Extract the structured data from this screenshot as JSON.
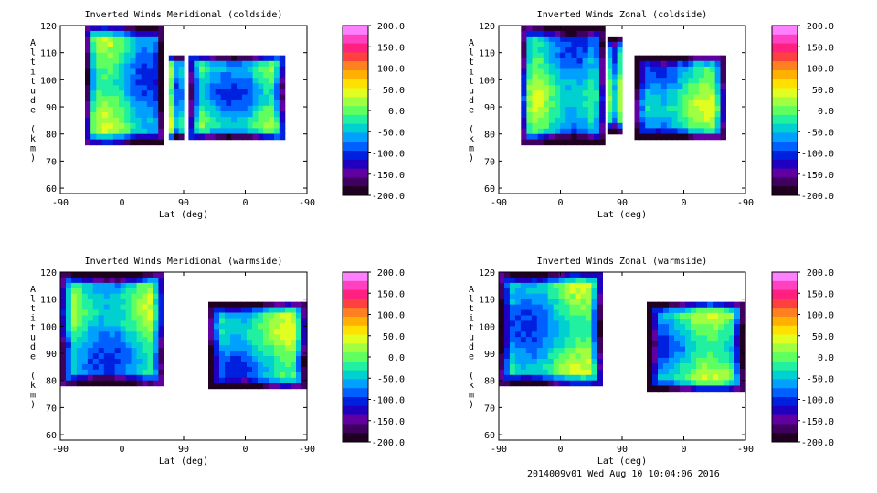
{
  "footer": "2014009v01 Wed Aug 10 10:04:06 2016",
  "colorbar": {
    "labels": [
      "200.0",
      "150.0",
      "100.0",
      "50.0",
      "0.0",
      "-50.0",
      "-100.0",
      "-150.0",
      "-200.0"
    ],
    "colors": [
      "#ff80ff",
      "#ff40c0",
      "#ff2080",
      "#ff4040",
      "#ff8020",
      "#ffb000",
      "#ffe000",
      "#e0ff20",
      "#a0ff40",
      "#60ff60",
      "#20f0a0",
      "#00d0d0",
      "#00a0ff",
      "#0060ff",
      "#0020e0",
      "#2000c0",
      "#6000a0",
      "#400060",
      "#200020"
    ]
  },
  "chart_data": [
    {
      "type": "heatmap",
      "title": "Inverted Winds Meridional (coldside)",
      "xlabel": "Lat (deg)",
      "ylabel": "Altitude (km)",
      "xticks": [
        "-90",
        "0",
        "90",
        "0",
        "-90"
      ],
      "yticks": [
        "60",
        "70",
        "80",
        "90",
        "100",
        "110",
        "120"
      ],
      "ylim": [
        58,
        120
      ],
      "zlim": [
        -200,
        200
      ]
    },
    {
      "type": "heatmap",
      "title": "Inverted Winds Zonal (coldside)",
      "xlabel": "Lat (deg)",
      "ylabel": "Altitude (km)",
      "xticks": [
        "-90",
        "0",
        "90",
        "0",
        "-90"
      ],
      "yticks": [
        "60",
        "70",
        "80",
        "90",
        "100",
        "110",
        "120"
      ],
      "ylim": [
        58,
        120
      ],
      "zlim": [
        -200,
        200
      ]
    },
    {
      "type": "heatmap",
      "title": "Inverted Winds Meridional (warmside)",
      "xlabel": "Lat (deg)",
      "ylabel": "Altitude (km)",
      "xticks": [
        "-90",
        "0",
        "90",
        "0",
        "-90"
      ],
      "yticks": [
        "60",
        "70",
        "80",
        "90",
        "100",
        "110",
        "120"
      ],
      "ylim": [
        58,
        120
      ],
      "zlim": [
        -200,
        200
      ]
    },
    {
      "type": "heatmap",
      "title": "Inverted Winds Zonal (warmside)",
      "xlabel": "Lat (deg)",
      "ylabel": "Altitude (km)",
      "xticks": [
        "-90",
        "0",
        "90",
        "0",
        "-90"
      ],
      "yticks": [
        "60",
        "70",
        "80",
        "90",
        "100",
        "110",
        "120"
      ],
      "ylim": [
        58,
        120
      ],
      "zlim": [
        -200,
        200
      ]
    }
  ]
}
